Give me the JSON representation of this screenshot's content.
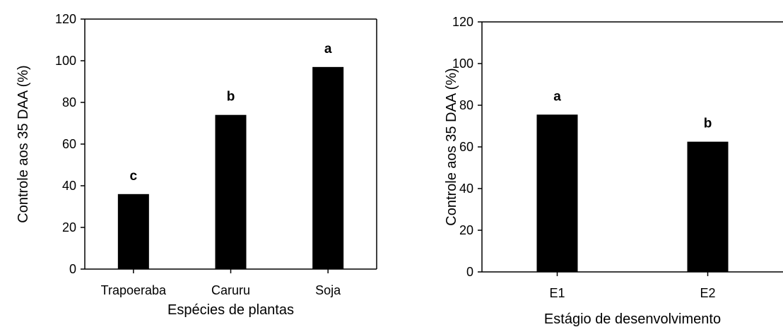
{
  "chart_data": [
    {
      "type": "bar",
      "title": "",
      "xlabel": "Espécies de plantas",
      "ylabel": "Controle aos 35 DAA (%)",
      "categories": [
        "Trapoeraba",
        "Caruru",
        "Soja"
      ],
      "values": [
        36,
        74,
        97
      ],
      "significance_letters": [
        "c",
        "b",
        "a"
      ],
      "ylim": [
        0,
        120
      ],
      "yticks": [
        0,
        20,
        40,
        60,
        80,
        100,
        120
      ],
      "grid": false,
      "legend": "none",
      "bar_color": "#000000"
    },
    {
      "type": "bar",
      "title": "",
      "xlabel": "Estágio de desenvolvimento",
      "ylabel": "Controle aos 35 DAA (%)",
      "categories": [
        "E1",
        "E2"
      ],
      "values": [
        75.5,
        62.5
      ],
      "significance_letters": [
        "a",
        "b"
      ],
      "ylim": [
        0,
        120
      ],
      "yticks": [
        0,
        20,
        40,
        60,
        80,
        100,
        120
      ],
      "grid": false,
      "legend": "none",
      "bar_color": "#000000"
    }
  ]
}
